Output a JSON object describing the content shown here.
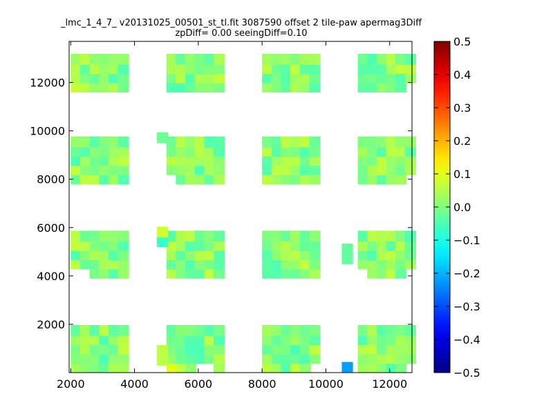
{
  "chart_data": {
    "type": "heatmap",
    "title_line1": "_lmc_1_4_7_ v20131025_00501_st_tl.fit 3087590 offset 2 tile-paw apermag3Diff",
    "title_line2": "zpDiff= 0.00 seeingDiff=0.10",
    "xlabel": "",
    "ylabel": "",
    "xlim": [
      1950,
      12700
    ],
    "ylim": [
      0,
      13700
    ],
    "x_ticks": [
      2000,
      4000,
      6000,
      8000,
      10000,
      12000
    ],
    "y_ticks": [
      2000,
      4000,
      6000,
      8000,
      10000,
      12000
    ],
    "x_tick_labels": [
      "2000",
      "4000",
      "6000",
      "8000",
      "10000",
      "12000"
    ],
    "y_tick_labels": [
      "2000",
      "4000",
      "6000",
      "8000",
      "10000",
      "12000"
    ],
    "colorbar": {
      "colormap": "jet",
      "vmin": -0.5,
      "vmax": 0.5,
      "ticks": [
        0.5,
        0.4,
        0.3,
        0.2,
        0.1,
        0.0,
        -0.1,
        -0.2,
        -0.3,
        -0.4,
        -0.5
      ],
      "tick_labels": [
        "0.5",
        "0.4",
        "0.3",
        "0.2",
        "0.1",
        "0.0",
        "−0.1",
        "−0.2",
        "−0.3",
        "−0.4",
        "−0.5"
      ]
    },
    "cell_size_x": 340,
    "cell_size_y": 440,
    "x_starts": [
      2000,
      5000,
      8000,
      11000
    ],
    "y_starts": [
      0,
      3900,
      7800,
      11600
    ],
    "missing_cells": [
      [
        5000,
        0,
        3
      ],
      [
        5000,
        0,
        4
      ],
      [
        8000,
        0,
        5
      ],
      [
        11000,
        0,
        5
      ],
      [
        8000,
        3900,
        6
      ],
      [
        2000,
        3900,
        0
      ],
      [
        2000,
        3900,
        1
      ],
      [
        11000,
        3900,
        0
      ],
      [
        11000,
        3900,
        5
      ],
      [
        5000,
        7800,
        0
      ],
      [
        11000,
        7800,
        5
      ],
      [
        11000,
        7800,
        6
      ],
      [
        11000,
        11600,
        5
      ]
    ],
    "extra_cells": [
      [
        10500,
        0,
        -0.22
      ],
      [
        10500,
        4500,
        -0.03
      ],
      [
        10500,
        4900,
        -0.03
      ],
      [
        4700,
        300,
        0.06
      ],
      [
        4700,
        700,
        0.06
      ],
      [
        4700,
        5200,
        -0.07
      ],
      [
        4700,
        5600,
        0.08
      ],
      [
        4700,
        9500,
        -0.02
      ]
    ],
    "value_range_note": "",
    "highlight_cells": [
      [
        2000,
        11600,
        0.07
      ],
      [
        5000,
        0,
        0.1
      ],
      [
        3700,
        1700,
        -0.08
      ],
      [
        3700,
        3900,
        -0.07
      ],
      [
        9700,
        4300,
        -0.1
      ],
      [
        7200,
        4700,
        -0.09
      ]
    ]
  }
}
